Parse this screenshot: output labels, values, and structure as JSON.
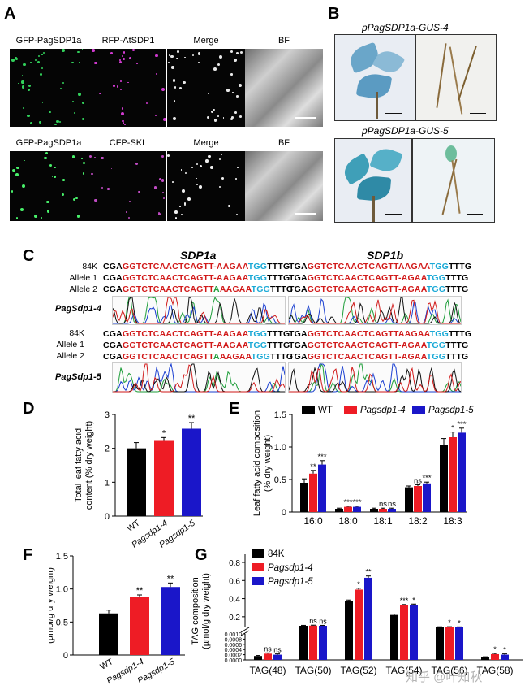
{
  "panels": {
    "A": "A",
    "B": "B",
    "C": "C",
    "D": "D",
    "E": "E",
    "F": "F",
    "G": "G"
  },
  "panel_a": {
    "row1_labels": [
      "GFP-PagSDP1a",
      "RFP-AtSDP1",
      "Merge",
      "BF"
    ],
    "row2_labels": [
      "GFP-PagSDP1a",
      "CFP-SKL",
      "Merge",
      "BF"
    ]
  },
  "panel_b": {
    "title1": "pPagSDP1a-GUS-4",
    "title2": "pPagSDP1a-GUS-5"
  },
  "panel_c": {
    "gene1": "SDP1a",
    "gene2": "SDP1b",
    "row_labels": [
      "84K",
      "Allele 1",
      "Allele 2"
    ],
    "line1": "PagSdp1-4",
    "line2": "PagSdp1-5",
    "sdp1a_block1": [
      "CGAGGTCTCAACTCAGTT-AAGAATGGTTTG",
      "CGAGGTCTCAACTCAGTT-AAGAATGGTTTG",
      "CGAGGTCTCAACTCAGTTAAAGAATGGTTTG"
    ],
    "sdp1b_block1": [
      "TGAGGTCTCAACTCAGTTAAGAATGGTTTG",
      "TGAGGTCTCAACTCAGTT-AGAATGGTTTG",
      "TGAGGTCTCAACTCAGTT-AGAATGGTTTG"
    ],
    "sdp1a_block2": [
      "CGAGGTCTCAACTCAGTT-AAGAATGGTTTG",
      "CGAGGTCTCAACTCAGTT-AAGAATGGTTTG",
      "CGAGGTCTCAACTCAGTTAAAGAATGGTTTG"
    ],
    "sdp1b_block2": [
      "TGAGGTCTCAACTCAGTTAAGAATGGTTTG",
      "TGAGGTCTCAACTCAGTT-AGAATGGTTTG",
      "TGAGGTCTCAACTCAGTT-AGAATGGTTTG"
    ]
  },
  "chart_data": [
    {
      "id": "D",
      "type": "bar",
      "categories": [
        "WT",
        "Pagsdp1-4",
        "Pagsdp1-5"
      ],
      "values": [
        2.0,
        2.22,
        2.58
      ],
      "errors": [
        0.17,
        0.1,
        0.18
      ],
      "significance": [
        "",
        "*",
        "**"
      ],
      "colors": [
        "#000000",
        "#ee1c25",
        "#1a16c9"
      ],
      "ylabel": "Total leaf fatty acid content (% dry weight)",
      "ylim": [
        0,
        3
      ],
      "yticks": [
        0,
        1,
        2,
        3
      ]
    },
    {
      "id": "E",
      "type": "bar",
      "categories": [
        "16:0",
        "18:0",
        "18:1",
        "18:2",
        "18:3"
      ],
      "series": [
        {
          "name": "WT",
          "values": [
            0.45,
            0.05,
            0.05,
            0.38,
            1.03
          ],
          "errors": [
            0.06,
            0.01,
            0.01,
            0.02,
            0.1
          ],
          "sig": [
            "",
            "",
            "",
            "",
            ""
          ]
        },
        {
          "name": "Pagsdp1-4",
          "values": [
            0.59,
            0.08,
            0.05,
            0.4,
            1.15
          ],
          "errors": [
            0.05,
            0.01,
            0.01,
            0.02,
            0.08
          ],
          "sig": [
            "**",
            "***",
            "ns",
            "ns",
            "*"
          ]
        },
        {
          "name": "Pagsdp1-5",
          "values": [
            0.73,
            0.08,
            0.05,
            0.44,
            1.22
          ],
          "errors": [
            0.06,
            0.01,
            0.01,
            0.02,
            0.07
          ],
          "sig": [
            "***",
            "***",
            "ns",
            "***",
            "***"
          ]
        }
      ],
      "colors": [
        "#000000",
        "#ee1c25",
        "#1a16c9"
      ],
      "ylabel": "Leaf fatty acid composition (% dry weight)",
      "ylim": [
        0,
        1.5
      ],
      "yticks": [
        "0",
        "0.5",
        "1.0",
        "1.5"
      ],
      "legend_position": "top"
    },
    {
      "id": "F",
      "type": "bar",
      "categories": [
        "WT",
        "Pagsdp1-4",
        "Pagsdp1-5"
      ],
      "values": [
        0.63,
        0.88,
        1.03
      ],
      "errors": [
        0.05,
        0.03,
        0.06
      ],
      "significance": [
        "",
        "**",
        "**"
      ],
      "colors": [
        "#000000",
        "#ee1c25",
        "#1a16c9"
      ],
      "ylabel": "TAG content (µmol/g dry weight)",
      "ylim": [
        0,
        1.5
      ],
      "yticks": [
        "0",
        "0.5",
        "1.0",
        "1.5"
      ]
    },
    {
      "id": "G",
      "type": "bar",
      "categories": [
        "TAG(48)",
        "TAG(50)",
        "TAG(52)",
        "TAG(54)",
        "TAG(56)",
        "TAG(58)"
      ],
      "series": [
        {
          "name": "84K",
          "values": [
            0.00015,
            0.1,
            0.37,
            0.22,
            0.085,
            0.0001
          ],
          "errors": [
            2e-05,
            0.005,
            0.015,
            0.01,
            0.004,
            2e-05
          ],
          "sig": [
            "",
            "",
            "",
            "",
            "",
            ""
          ]
        },
        {
          "name": "Pagsdp1-4",
          "values": [
            0.00024,
            0.102,
            0.5,
            0.33,
            0.087,
            0.00022
          ],
          "errors": [
            3e-05,
            0.005,
            0.015,
            0.005,
            0.003,
            3e-05
          ],
          "sig": [
            "ns",
            "ns",
            "*",
            "***",
            "*",
            "*"
          ]
        },
        {
          "name": "Pagsdp1-5",
          "values": [
            0.0002,
            0.1,
            0.63,
            0.33,
            0.085,
            0.0002
          ],
          "errors": [
            3e-05,
            0.005,
            0.02,
            0.01,
            0.003,
            3e-05
          ],
          "sig": [
            "ns",
            "ns",
            "**",
            "*",
            "*",
            "*"
          ]
        }
      ],
      "colors": [
        "#000000",
        "#ee1c25",
        "#1a16c9"
      ],
      "ylabel": "TAG composition (µmol/g dry weight)",
      "yticks_upper": [
        "0.2",
        "0.4",
        "0.6",
        "0.8"
      ],
      "yticks_lower": [
        "0.0000",
        "0.0002",
        "0.0004",
        "0.0006",
        "0.0008",
        "0.0010"
      ],
      "axis_break": true,
      "legend_position": "top-left"
    }
  ],
  "watermark": "知乎 @叶知秋"
}
